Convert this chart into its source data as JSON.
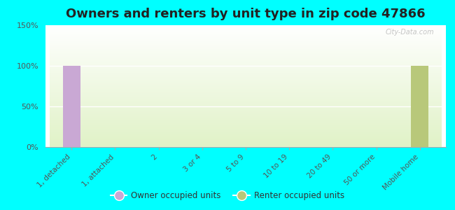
{
  "title": "Owners and renters by unit type in zip code 47866",
  "categories": [
    "1, detached",
    "1, attached",
    "2",
    "3 or 4",
    "5 to 9",
    "10 to 19",
    "20 to 49",
    "50 or more",
    "Mobile home"
  ],
  "owner_values": [
    100,
    0,
    0,
    0,
    0,
    0,
    0,
    0,
    0
  ],
  "renter_values": [
    0,
    0,
    0,
    0,
    0,
    0,
    0,
    0,
    100
  ],
  "owner_color": "#c9a8d4",
  "renter_color": "#b8c87a",
  "ylim": [
    0,
    150
  ],
  "yticks": [
    0,
    50,
    100,
    150
  ],
  "outer_background": "#00ffff",
  "title_fontsize": 13,
  "bar_width": 0.4,
  "legend_owner_label": "Owner occupied units",
  "legend_renter_label": "Renter occupied units",
  "watermark": "City-Data.com"
}
